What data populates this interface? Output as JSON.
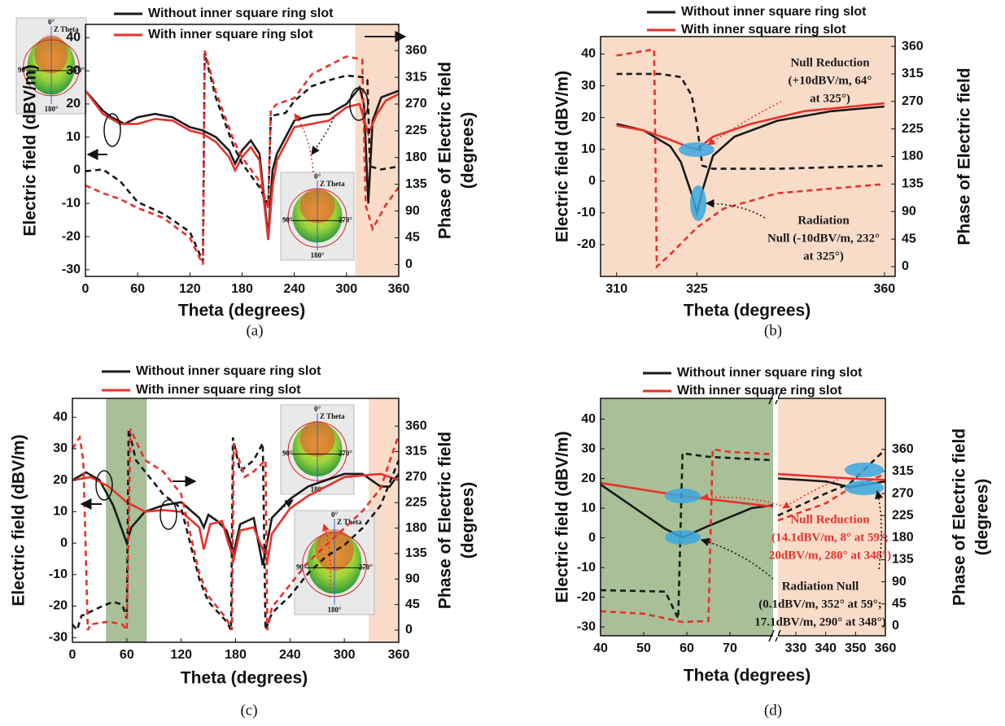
{
  "chart_data": [
    {
      "type": "line",
      "caption": "(a)",
      "xlabel": "Theta (degrees)",
      "ylabel": "Electric field (dBV/m)",
      "y2label": [
        "Phase of Electric field",
        "(degrees)"
      ],
      "xlim": [
        0,
        360
      ],
      "xticks": [
        0,
        60,
        120,
        180,
        240,
        300,
        360
      ],
      "ylim": [
        -32,
        44
      ],
      "yticks": [
        -30,
        -20,
        -10,
        0,
        10,
        20,
        30,
        40
      ],
      "y2lim": [
        -20,
        404
      ],
      "y2ticks": [
        0,
        45,
        90,
        135,
        180,
        225,
        270,
        315,
        360
      ],
      "shaded": [
        {
          "from": 310,
          "to": 360,
          "color": "#f9dcc8"
        }
      ],
      "insets": [
        [
          "0°",
          "Z Theta",
          "90°",
          "270°",
          "180°"
        ],
        [
          "0°",
          "Z Theta",
          "90°",
          "270°",
          "180°"
        ]
      ],
      "annotations": [],
      "series": [
        {
          "name": "Without inner square ring slot",
          "color": "#1a1a1a",
          "x": [
            0,
            20,
            30,
            45,
            60,
            80,
            100,
            120,
            135,
            150,
            165,
            172,
            180,
            190,
            200,
            210,
            215,
            220,
            240,
            260,
            280,
            300,
            315,
            320,
            325,
            330,
            340,
            360
          ],
          "values": [
            24,
            18,
            16,
            14,
            16,
            17,
            16,
            13,
            12,
            10,
            6,
            2,
            6,
            9,
            5,
            -20,
            0,
            5,
            15,
            16.5,
            17,
            20,
            25,
            20,
            -10,
            15,
            22,
            24
          ]
        },
        {
          "name": "With inner square ring slot",
          "color": "#e8312b",
          "x": [
            0,
            20,
            40,
            60,
            80,
            100,
            120,
            135,
            150,
            165,
            172,
            180,
            190,
            200,
            210,
            215,
            220,
            240,
            260,
            280,
            300,
            315,
            325,
            335,
            345,
            360
          ],
          "values": [
            24,
            17,
            14,
            14,
            15.5,
            15,
            12,
            11,
            8.5,
            4,
            0,
            4,
            7,
            3,
            -21,
            -5,
            3,
            13,
            14,
            15,
            19,
            20,
            11,
            17,
            21,
            23
          ]
        },
        {
          "color": "#1a1a1a",
          "dash": true,
          "axis": "y2",
          "x": [
            0,
            20,
            40,
            60,
            90,
            120,
            135,
            137,
            150,
            170,
            180,
            200,
            210,
            213,
            230,
            240,
            260,
            280,
            300,
            320,
            324,
            327,
            340,
            360
          ],
          "values": [
            157,
            160,
            140,
            105,
            85,
            55,
            5,
            355,
            280,
            200,
            170,
            130,
            100,
            250,
            255,
            275,
            300,
            310,
            318,
            315,
            310,
            165,
            160,
            165
          ]
        },
        {
          "color": "#e8312b",
          "dash": true,
          "axis": "y2",
          "x": [
            0,
            20,
            40,
            60,
            90,
            120,
            135,
            137,
            150,
            170,
            180,
            200,
            210,
            213,
            220,
            240,
            260,
            280,
            300,
            318,
            322,
            330,
            345,
            360
          ],
          "values": [
            133,
            120,
            110,
            95,
            78,
            45,
            0,
            360,
            290,
            210,
            180,
            140,
            95,
            260,
            270,
            280,
            320,
            335,
            350,
            345,
            100,
            60,
            100,
            130
          ]
        }
      ]
    },
    {
      "type": "line",
      "caption": "(b)",
      "xlabel": "Theta (degrees)",
      "ylabel": "Electric field (dBV/m)",
      "y2label": [
        "Phase of Electric field"
      ],
      "xlim": [
        307,
        362
      ],
      "xticks": [
        310,
        325,
        360
      ],
      "ylim": [
        -30,
        45.5
      ],
      "yticks": [
        -20,
        -10,
        0,
        10,
        20,
        30,
        40
      ],
      "y2lim": [
        -16,
        376
      ],
      "y2ticks": [
        0,
        45,
        90,
        135,
        180,
        225,
        270,
        315,
        360
      ],
      "shaded": [
        {
          "from": 307,
          "to": 362,
          "color": "#f9dcc8"
        }
      ],
      "insets": [],
      "annotations": [
        {
          "lines": [
            "Null Reduction",
            "(+10dBV/m, 64°",
            "at 325°)"
          ],
          "color": "#1a1a1a"
        },
        {
          "lines": [
            "Radiation",
            "Null (-10dBV/m, 232°",
            "at 325°)"
          ],
          "color": "#1a1a1a"
        }
      ],
      "series": [
        {
          "name": "Without inner square ring slot",
          "color": "#1a1a1a",
          "x": [
            310,
            315,
            320,
            322,
            324,
            325,
            326,
            328,
            332,
            340,
            350,
            360
          ],
          "values": [
            18,
            16,
            11,
            6,
            -4,
            -10,
            -3,
            8,
            14,
            19,
            22,
            23.5
          ]
        },
        {
          "name": "With inner square ring slot",
          "color": "#e8312b",
          "x": [
            310,
            315,
            320,
            323,
            325,
            328,
            335,
            345,
            360
          ],
          "values": [
            17.5,
            16,
            13,
            11,
            10,
            14,
            18,
            22,
            24.5
          ]
        },
        {
          "color": "#1a1a1a",
          "dash": true,
          "axis": "y2",
          "x": [
            310,
            318,
            322,
            324,
            325,
            326,
            328,
            340,
            360
          ],
          "values": [
            315,
            315,
            310,
            280,
            232,
            165,
            160,
            160,
            165
          ]
        },
        {
          "color": "#e8312b",
          "dash": true,
          "axis": "y2",
          "x": [
            310,
            317,
            317.5,
            320,
            325,
            330,
            340,
            360
          ],
          "values": [
            345,
            355,
            0,
            20,
            64,
            95,
            120,
            135
          ]
        }
      ]
    },
    {
      "type": "line",
      "caption": "(c)",
      "xlabel": "Theta (degrees)",
      "ylabel": "Electric field (dBV/m)",
      "y2label": [
        "Phase of Electric field",
        "(degrees)"
      ],
      "xlim": [
        0,
        360
      ],
      "xticks": [
        0,
        60,
        120,
        180,
        240,
        300,
        360
      ],
      "ylim": [
        -31.5,
        46
      ],
      "yticks": [
        -30,
        -20,
        -10,
        0,
        10,
        20,
        30,
        40
      ],
      "y2lim": [
        -21.5,
        409
      ],
      "y2ticks": [
        0,
        45,
        90,
        135,
        180,
        225,
        270,
        315,
        360
      ],
      "shaded": [
        {
          "from": 37,
          "to": 82,
          "color": "#a8bf97"
        },
        {
          "from": 327,
          "to": 360,
          "color": "#f9dcc8"
        }
      ],
      "insets": [
        [
          "0°",
          "Z Theta",
          "90°",
          "270°",
          "180°"
        ],
        [
          "0°",
          "Z Theta",
          "90°",
          "270°",
          "180°"
        ]
      ],
      "annotations": [],
      "series": [
        {
          "name": "Without inner square ring slot",
          "color": "#1a1a1a",
          "x": [
            0,
            15,
            30,
            45,
            55,
            60,
            65,
            80,
            100,
            120,
            140,
            145,
            150,
            160,
            170,
            178,
            185,
            200,
            210,
            220,
            240,
            260,
            280,
            300,
            320,
            340,
            350,
            360
          ],
          "values": [
            20,
            22.5,
            20,
            12,
            4,
            0,
            5,
            10,
            12,
            13,
            8,
            5,
            9,
            7,
            4,
            -3,
            6,
            8,
            -7,
            8,
            14,
            18,
            20,
            22,
            22,
            18,
            18,
            22
          ]
        },
        {
          "name": "With inner square ring slot",
          "color": "#e8312b",
          "x": [
            0,
            20,
            40,
            60,
            80,
            100,
            120,
            140,
            145,
            152,
            165,
            172,
            178,
            185,
            200,
            210,
            215,
            220,
            240,
            260,
            280,
            300,
            320,
            340,
            360
          ],
          "values": [
            20,
            21,
            18,
            13,
            10,
            10.5,
            10,
            5,
            -2,
            6,
            7,
            0,
            -5,
            4,
            5,
            -2,
            -6,
            3,
            11,
            15,
            18,
            21,
            21.5,
            22,
            20
          ]
        },
        {
          "color": "#1a1a1a",
          "dash": true,
          "axis": "y2",
          "x": [
            0,
            5,
            10,
            30,
            45,
            55,
            60,
            62,
            70,
            90,
            100,
            120,
            140,
            150,
            170,
            175,
            177,
            185,
            200,
            210,
            213,
            220,
            240,
            260,
            280,
            300,
            320,
            340,
            360
          ],
          "values": [
            10,
            0,
            25,
            40,
            50,
            45,
            20,
            355,
            300,
            260,
            240,
            215,
            90,
            50,
            15,
            0,
            340,
            280,
            300,
            330,
            0,
            30,
            60,
            100,
            130,
            150,
            180,
            220,
            300
          ]
        },
        {
          "color": "#e8312b",
          "dash": true,
          "axis": "y2",
          "x": [
            0,
            8,
            12,
            17,
            20,
            40,
            55,
            60,
            64,
            80,
            100,
            120,
            140,
            150,
            170,
            176,
            178,
            190,
            200,
            213,
            215,
            220,
            240,
            260,
            280,
            300,
            320,
            340,
            360
          ],
          "values": [
            320,
            340,
            300,
            0,
            10,
            15,
            10,
            0,
            355,
            300,
            280,
            240,
            100,
            60,
            20,
            0,
            330,
            270,
            280,
            300,
            0,
            40,
            80,
            120,
            150,
            180,
            210,
            250,
            345
          ]
        }
      ]
    },
    {
      "type": "line",
      "caption": "(d)",
      "xlabel": "Theta (degrees)",
      "ylabel": "Electric field (dBV/m)",
      "y2label": [
        "Phase of Electric field",
        "(degrees)"
      ],
      "xsegments": [
        [
          40,
          80
        ],
        [
          324,
          360
        ]
      ],
      "xticks": [
        40,
        50,
        60,
        70,
        330,
        340,
        350,
        360
      ],
      "ylim": [
        -33,
        47
      ],
      "yticks": [
        -30,
        -20,
        -10,
        0,
        10,
        20,
        30,
        40
      ],
      "y2lim": [
        -20,
        464
      ],
      "y2ticks": [
        0,
        45,
        90,
        135,
        180,
        225,
        270,
        315,
        360
      ],
      "shaded": [
        {
          "from": 40,
          "to": 80,
          "color": "#a8bf97"
        },
        {
          "from": 324,
          "to": 360,
          "color": "#f9dcc8"
        }
      ],
      "insets": [],
      "annotations": [
        {
          "lines": [
            "Null Reduction",
            "(14.1dBV/m, 8° at 59°;",
            "20dBV/m, 280° at 348°)"
          ],
          "color": "#e8312b"
        },
        {
          "lines": [
            "Radiation Null",
            "(0.1dBV/m, 352° at 59°;",
            "17.1dBV/m, 290° at 348°)"
          ],
          "color": "#1a1a1a"
        }
      ],
      "series": [
        {
          "name": "Without inner square ring slot",
          "color": "#1a1a1a",
          "x": [
            40,
            50,
            55,
            59,
            65,
            75,
            80,
            null,
            324,
            340,
            348,
            360
          ],
          "values": [
            18,
            8,
            3,
            0.1,
            4,
            10,
            11,
            null,
            20,
            19,
            17.1,
            19
          ]
        },
        {
          "name": "With inner square ring slot",
          "color": "#e8312b",
          "x": [
            40,
            59,
            80,
            null,
            324,
            348,
            360
          ],
          "values": [
            18.5,
            14.1,
            10.5,
            null,
            21.5,
            20,
            19.5
          ]
        },
        {
          "color": "#1a1a1a",
          "dash": true,
          "axis": "y2",
          "x": [
            40,
            55,
            58,
            59,
            65,
            75,
            80,
            null,
            324,
            340,
            348,
            360
          ],
          "values": [
            73,
            70,
            15,
            352,
            345,
            340,
            338,
            null,
            225,
            270,
            290,
            360
          ]
        },
        {
          "color": "#e8312b",
          "dash": true,
          "axis": "y2",
          "x": [
            40,
            50,
            59,
            65,
            66,
            70,
            80,
            null,
            324,
            340,
            348,
            360
          ],
          "values": [
            30,
            25,
            8,
            10,
            360,
            355,
            350,
            null,
            215,
            250,
            280,
            310
          ]
        }
      ]
    }
  ]
}
